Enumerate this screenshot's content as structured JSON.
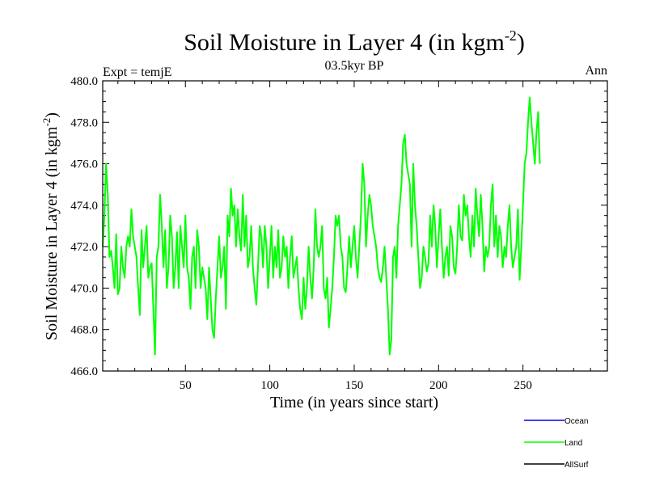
{
  "chart_data": {
    "type": "line",
    "title": "Soil Moisture in Layer 4 (in kgm",
    "title_superscript": "-2",
    "title_close": ")",
    "subtitle": "03.5kyr BP",
    "left_label": "Expt = temjE",
    "right_label": "Ann",
    "xlabel": "Time (in years since start)",
    "ylabel": "Soil Moisture in Layer 4 (in kgm",
    "ylabel_superscript": "-2",
    "ylabel_close": ")",
    "xlim": [
      1,
      300
    ],
    "ylim": [
      466.0,
      480.0
    ],
    "x_ticks": [
      50,
      100,
      150,
      200,
      250
    ],
    "x_tick_labels": [
      "50",
      "100",
      "150",
      "200",
      "250"
    ],
    "y_ticks": [
      466,
      468,
      470,
      472,
      474,
      476,
      478,
      480
    ],
    "y_tick_labels": [
      "466.0",
      "468.0",
      "470.0",
      "472.0",
      "474.0",
      "476.0",
      "478.0",
      "480.0"
    ],
    "legend": [
      {
        "name": "Ocean",
        "color": "#0000ff"
      },
      {
        "name": "Land",
        "color": "#00ff00"
      },
      {
        "name": "AllSurf",
        "color": "#000000"
      }
    ],
    "series": [
      {
        "name": "Land",
        "color": "#00ff00",
        "x_start": 1,
        "x_step": 1,
        "values": [
          472.0,
          473.5,
          476.0,
          474.5,
          471.5,
          471.8,
          471.0,
          470.0,
          472.6,
          469.7,
          470.0,
          472.0,
          471.0,
          470.5,
          472.0,
          472.5,
          472.0,
          473.8,
          472.5,
          472.0,
          471.5,
          470.0,
          468.7,
          472.8,
          471.0,
          472.0,
          473.0,
          470.5,
          471.0,
          471.2,
          469.0,
          466.8,
          471.5,
          472.0,
          474.5,
          473.0,
          471.0,
          472.8,
          470.0,
          471.0,
          473.5,
          472.5,
          470.0,
          471.0,
          472.7,
          470.0,
          473.0,
          472.0,
          471.0,
          473.5,
          471.0,
          470.5,
          469.0,
          471.5,
          472.0,
          470.0,
          472.8,
          472.0,
          470.0,
          471.0,
          470.5,
          470.0,
          468.5,
          471.0,
          469.5,
          468.0,
          467.6,
          469.5,
          471.0,
          472.5,
          470.5,
          471.0,
          472.0,
          469.0,
          473.5,
          472.5,
          474.8,
          473.5,
          474.0,
          472.0,
          473.8,
          472.5,
          471.8,
          474.5,
          472.0,
          473.5,
          471.0,
          471.5,
          473.0,
          471.0,
          470.0,
          469.2,
          471.0,
          473.0,
          472.5,
          471.0,
          473.0,
          472.0,
          470.0,
          471.5,
          473.0,
          470.5,
          472.0,
          471.0,
          472.8,
          470.5,
          471.0,
          472.5,
          471.5,
          472.0,
          470.0,
          471.5,
          472.5,
          470.5,
          471.0,
          471.5,
          470.0,
          469.0,
          468.5,
          470.5,
          469.0,
          470.0,
          472.0,
          470.5,
          469.5,
          471.0,
          473.8,
          472.0,
          471.5,
          472.0,
          473.0,
          470.0,
          469.5,
          470.5,
          468.1,
          469.0,
          470.0,
          471.5,
          473.5,
          473.0,
          473.5,
          472.0,
          471.5,
          470.0,
          469.8,
          471.0,
          472.5,
          471.0,
          472.0,
          473.0,
          471.5,
          470.5,
          472.0,
          473.5,
          476.0,
          475.0,
          472.0,
          473.5,
          474.5,
          474.0,
          473.0,
          472.5,
          472.0,
          471.0,
          470.5,
          470.3,
          471.0,
          472.0,
          470.5,
          469.0,
          466.8,
          467.5,
          471.5,
          472.0,
          470.5,
          473.0,
          474.0,
          475.0,
          477.0,
          477.4,
          476.0,
          475.5,
          475.0,
          472.0,
          476.0,
          474.0,
          473.0,
          471.5,
          470.0,
          470.5,
          472.0,
          471.5,
          470.8,
          471.2,
          473.5,
          472.0,
          474.0,
          473.0,
          471.0,
          472.5,
          473.8,
          472.0,
          470.5,
          471.5,
          472.0,
          470.6,
          473.0,
          472.5,
          471.0,
          470.7,
          472.0,
          474.0,
          472.5,
          472.3,
          474.5,
          473.5,
          474.0,
          472.5,
          471.5,
          473.5,
          472.0,
          474.8,
          473.5,
          472.5,
          474.5,
          473.0,
          470.8,
          472.0,
          471.5,
          472.0,
          474.0,
          475.0,
          472.0,
          473.5,
          471.5,
          473.0,
          472.5,
          471.0,
          472.0,
          471.5,
          473.0,
          474.0,
          472.0,
          471.0,
          471.5,
          472.0,
          473.8,
          470.4,
          472.0,
          474.0,
          476.0,
          476.5,
          478.0,
          479.2,
          478.0,
          477.0,
          476.0,
          477.5,
          478.5,
          476.0
        ]
      }
    ]
  }
}
